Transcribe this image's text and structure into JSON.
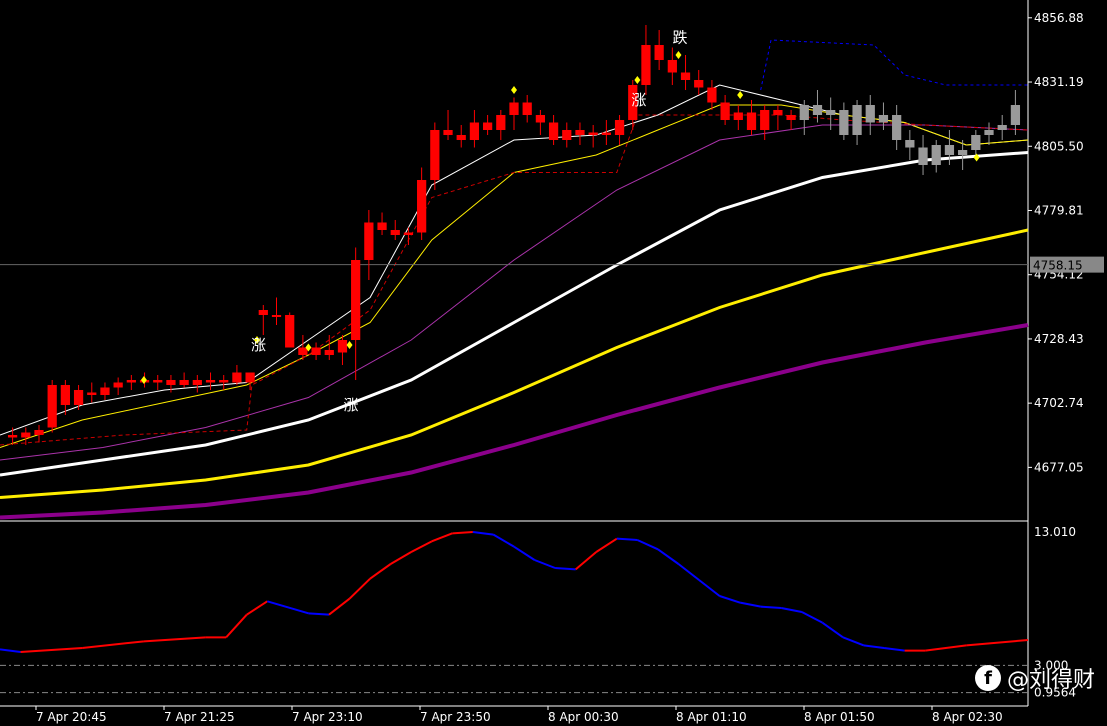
{
  "chart_data": [
    {
      "type": "candlestick",
      "panel": "main",
      "y_ticks": [
        "4856.88",
        "4831.19",
        "4805.50",
        "4779.81",
        "4754.12",
        "4728.43",
        "4702.74",
        "4677.05"
      ],
      "ylim": [
        4658,
        4862
      ],
      "current_price_label": "4758.15",
      "current_price": 4758.15,
      "x_ticks": [
        "7 Apr 20:45",
        "7 Apr 21:25",
        "7 Apr 23:10",
        "7 Apr 23:50",
        "8 Apr 00:30",
        "8 Apr 01:10",
        "8 Apr 01:50",
        "8 Apr 02:30"
      ],
      "candles": [
        [
          4690,
          4693,
          4686,
          4689
        ],
        [
          4689,
          4693,
          4686,
          4691
        ],
        [
          4690,
          4694,
          4687,
          4692
        ],
        [
          4693,
          4712,
          4691,
          4710
        ],
        [
          4710,
          4712,
          4698,
          4702
        ],
        [
          4702,
          4710,
          4700,
          4708
        ],
        [
          4707,
          4711,
          4703,
          4706
        ],
        [
          4706,
          4711,
          4704,
          4709
        ],
        [
          4709,
          4713,
          4706,
          4711
        ],
        [
          4711,
          4714,
          4708,
          4712
        ],
        [
          4711,
          4715,
          4709,
          4712
        ],
        [
          4712,
          4714,
          4708,
          4711
        ],
        [
          4710,
          4714,
          4707,
          4712
        ],
        [
          4712,
          4715,
          4709,
          4710
        ],
        [
          4710,
          4714,
          4707,
          4712
        ],
        [
          4712,
          4715,
          4708,
          4711
        ],
        [
          4711,
          4714,
          4708,
          4712
        ],
        [
          4715,
          4718,
          4710,
          4711
        ],
        [
          4711,
          4714,
          4708,
          4715
        ],
        [
          4740,
          4742,
          4730,
          4738
        ],
        [
          4738,
          4745,
          4734,
          4738
        ],
        [
          4738,
          4739,
          4725,
          4725
        ],
        [
          4725,
          4730,
          4720,
          4722
        ],
        [
          4722,
          4727,
          4720,
          4725
        ],
        [
          4724,
          4730,
          4720,
          4722
        ],
        [
          4723,
          4730,
          4718,
          4728
        ],
        [
          4728,
          4765,
          4712,
          4760
        ],
        [
          4760,
          4780,
          4752,
          4775
        ],
        [
          4775,
          4779,
          4770,
          4772
        ],
        [
          4772,
          4776,
          4768,
          4770
        ],
        [
          4770,
          4773,
          4766,
          4771
        ],
        [
          4771,
          4797,
          4768,
          4792
        ],
        [
          4792,
          4815,
          4788,
          4812
        ],
        [
          4812,
          4820,
          4808,
          4810
        ],
        [
          4810,
          4814,
          4805,
          4808
        ],
        [
          4808,
          4820,
          4805,
          4815
        ],
        [
          4815,
          4818,
          4810,
          4812
        ],
        [
          4812,
          4820,
          4808,
          4818
        ],
        [
          4818,
          4825,
          4812,
          4823
        ],
        [
          4823,
          4826,
          4815,
          4818
        ],
        [
          4818,
          4820,
          4810,
          4815
        ],
        [
          4815,
          4818,
          4806,
          4808
        ],
        [
          4808,
          4815,
          4805,
          4812
        ],
        [
          4812,
          4815,
          4806,
          4810
        ],
        [
          4810,
          4814,
          4805,
          4811
        ],
        [
          4811,
          4816,
          4806,
          4810
        ],
        [
          4810,
          4818,
          4806,
          4816
        ],
        [
          4816,
          4832,
          4812,
          4830
        ],
        [
          4830,
          4854,
          4826,
          4846
        ],
        [
          4846,
          4852,
          4836,
          4840
        ],
        [
          4840,
          4845,
          4830,
          4835
        ],
        [
          4835,
          4842,
          4828,
          4832
        ],
        [
          4832,
          4836,
          4826,
          4829
        ],
        [
          4829,
          4832,
          4820,
          4823
        ],
        [
          4823,
          4826,
          4814,
          4816
        ],
        [
          4816,
          4822,
          4812,
          4819
        ],
        [
          4819,
          4824,
          4810,
          4812
        ],
        [
          4812,
          4822,
          4808,
          4820
        ],
        [
          4820,
          4822,
          4812,
          4818
        ],
        [
          4818,
          4820,
          4812,
          4816
        ],
        [
          4816,
          4824,
          4810,
          4822
        ],
        [
          4822,
          4828,
          4815,
          4818
        ],
        [
          4818,
          4825,
          4812,
          4820
        ],
        [
          4820,
          4823,
          4808,
          4810
        ],
        [
          4810,
          4824,
          4806,
          4822
        ],
        [
          4822,
          4826,
          4810,
          4815
        ],
        [
          4815,
          4823,
          4812,
          4818
        ],
        [
          4818,
          4822,
          4804,
          4808
        ],
        [
          4808,
          4812,
          4800,
          4805
        ],
        [
          4805,
          4810,
          4794,
          4798
        ],
        [
          4798,
          4808,
          4795,
          4806
        ],
        [
          4806,
          4812,
          4798,
          4802
        ],
        [
          4802,
          4808,
          4796,
          4804
        ],
        [
          4804,
          4812,
          4802,
          4810
        ],
        [
          4810,
          4815,
          4806,
          4812
        ],
        [
          4812,
          4818,
          4808,
          4814
        ],
        [
          4814,
          4828,
          4810,
          4822
        ]
      ],
      "lines": [
        {
          "color": "#ffffff",
          "width": 3,
          "points": [
            [
              0,
              4674
            ],
            [
              10,
              4680
            ],
            [
              20,
              4686
            ],
            [
              30,
              4696
            ],
            [
              40,
              4712
            ],
            [
              50,
              4735
            ],
            [
              60,
              4758
            ],
            [
              70,
              4780
            ],
            [
              80,
              4793
            ],
            [
              90,
              4800
            ],
            [
              100,
              4803
            ]
          ]
        },
        {
          "color": "#ffee00",
          "width": 3,
          "points": [
            [
              0,
              4665
            ],
            [
              10,
              4668
            ],
            [
              20,
              4672
            ],
            [
              30,
              4678
            ],
            [
              40,
              4690
            ],
            [
              50,
              4707
            ],
            [
              60,
              4725
            ],
            [
              70,
              4741
            ],
            [
              80,
              4754
            ],
            [
              90,
              4763
            ],
            [
              100,
              4772
            ]
          ]
        },
        {
          "color": "#8b008b",
          "width": 4,
          "points": [
            [
              0,
              4657
            ],
            [
              10,
              4659
            ],
            [
              20,
              4662
            ],
            [
              30,
              4667
            ],
            [
              40,
              4675
            ],
            [
              50,
              4686
            ],
            [
              60,
              4698
            ],
            [
              70,
              4709
            ],
            [
              80,
              4719
            ],
            [
              90,
              4727
            ],
            [
              100,
              4734
            ]
          ]
        },
        {
          "color": "#ffffff",
          "width": 1,
          "points": [
            [
              0,
              4690
            ],
            [
              8,
              4702
            ],
            [
              16,
              4708
            ],
            [
              24,
              4711
            ],
            [
              30,
              4728
            ],
            [
              36,
              4745
            ],
            [
              42,
              4790
            ],
            [
              50,
              4808
            ],
            [
              58,
              4810
            ],
            [
              64,
              4818
            ],
            [
              70,
              4830
            ],
            [
              76,
              4824
            ],
            [
              82,
              4818
            ],
            [
              88,
              4815
            ],
            [
              94,
              4806
            ],
            [
              100,
              4808
            ]
          ]
        },
        {
          "color": "#ffee00",
          "width": 1,
          "points": [
            [
              0,
              4685
            ],
            [
              8,
              4696
            ],
            [
              16,
              4703
            ],
            [
              24,
              4710
            ],
            [
              30,
              4722
            ],
            [
              36,
              4735
            ],
            [
              42,
              4768
            ],
            [
              50,
              4795
            ],
            [
              58,
              4802
            ],
            [
              64,
              4812
            ],
            [
              70,
              4822
            ],
            [
              76,
              4822
            ],
            [
              82,
              4818
            ],
            [
              88,
              4815
            ],
            [
              94,
              4806
            ],
            [
              100,
              4808
            ]
          ]
        },
        {
          "color": "#aa33aa",
          "width": 1,
          "points": [
            [
              0,
              4680
            ],
            [
              10,
              4685
            ],
            [
              20,
              4693
            ],
            [
              30,
              4705
            ],
            [
              40,
              4728
            ],
            [
              50,
              4760
            ],
            [
              60,
              4788
            ],
            [
              70,
              4808
            ],
            [
              80,
              4814
            ],
            [
              90,
              4814
            ],
            [
              100,
              4812
            ]
          ]
        },
        {
          "color": "#cc0000",
          "width": 1,
          "dash": "4,3",
          "points": [
            [
              0,
              4686
            ],
            [
              12,
              4690
            ],
            [
              24,
              4692
            ],
            [
              24.5,
              4710
            ],
            [
              30,
              4722
            ],
            [
              36,
              4740
            ],
            [
              42,
              4785
            ],
            [
              50,
              4795
            ],
            [
              60,
              4795
            ],
            [
              62,
              4818
            ],
            [
              70,
              4818
            ],
            [
              76,
              4818
            ],
            [
              82,
              4816
            ],
            [
              90,
              4814
            ],
            [
              100,
              4812
            ]
          ]
        },
        {
          "color": "#0000ff",
          "width": 1,
          "dash": "3,3",
          "points": [
            [
              74,
              4828
            ],
            [
              75,
              4848
            ],
            [
              85,
              4846
            ],
            [
              88,
              4834
            ],
            [
              92,
              4830
            ],
            [
              100,
              4830
            ]
          ]
        },
        {
          "color": "#666666",
          "width": 1,
          "points": [
            [
              0,
              4758.15
            ],
            [
              100,
              4758.15
            ]
          ]
        }
      ],
      "annotations": [
        {
          "text": "涨",
          "x": 25,
          "y": 4724
        },
        {
          "text": "涨",
          "x": 34,
          "y": 4700
        },
        {
          "text": "涨",
          "x": 62,
          "y": 4822
        },
        {
          "text": "跌",
          "x": 66,
          "y": 4847
        }
      ],
      "markers": [
        {
          "x": 25,
          "y": 4728
        },
        {
          "x": 30,
          "y": 4725
        },
        {
          "x": 34,
          "y": 4726
        },
        {
          "x": 14,
          "y": 4712
        },
        {
          "x": 50,
          "y": 4828
        },
        {
          "x": 62,
          "y": 4832
        },
        {
          "x": 66,
          "y": 4842
        },
        {
          "x": 72,
          "y": 4826
        },
        {
          "x": 95,
          "y": 4801
        }
      ]
    },
    {
      "type": "line",
      "panel": "indicator",
      "y_ticks": [
        "13.010",
        "3.000",
        "0.9564"
      ],
      "ylim": [
        0.4,
        13.6
      ],
      "series": [
        {
          "color_up": "#ff0000",
          "color_down": "#0000ff",
          "points": [
            [
              0,
              4.2
            ],
            [
              2,
              4.0
            ],
            [
              8,
              4.3
            ],
            [
              14,
              4.8
            ],
            [
              20,
              5.1
            ],
            [
              22,
              5.1
            ],
            [
              24,
              6.8
            ],
            [
              26,
              7.8
            ],
            [
              30,
              6.9
            ],
            [
              32,
              6.8
            ],
            [
              34,
              8.0
            ],
            [
              36,
              9.5
            ],
            [
              38,
              10.6
            ],
            [
              40,
              11.5
            ],
            [
              42,
              12.3
            ],
            [
              44,
              12.9
            ],
            [
              46,
              13.0
            ],
            [
              48,
              12.8
            ],
            [
              50,
              11.9
            ],
            [
              52,
              10.9
            ],
            [
              54,
              10.3
            ],
            [
              56,
              10.2
            ],
            [
              58,
              11.5
            ],
            [
              60,
              12.5
            ],
            [
              62,
              12.4
            ],
            [
              64,
              11.7
            ],
            [
              66,
              10.6
            ],
            [
              68,
              9.4
            ],
            [
              70,
              8.2
            ],
            [
              72,
              7.7
            ],
            [
              74,
              7.4
            ],
            [
              76,
              7.3
            ],
            [
              78,
              7.0
            ],
            [
              80,
              6.2
            ],
            [
              82,
              5.1
            ],
            [
              84,
              4.5
            ],
            [
              86,
              4.3
            ],
            [
              88,
              4.1
            ],
            [
              90,
              4.1
            ],
            [
              94,
              4.5
            ],
            [
              100,
              4.9
            ]
          ]
        }
      ],
      "reference_lines": [
        3.0,
        0.9564
      ]
    }
  ],
  "watermark": {
    "icon": "f",
    "text": "@刘得财"
  }
}
